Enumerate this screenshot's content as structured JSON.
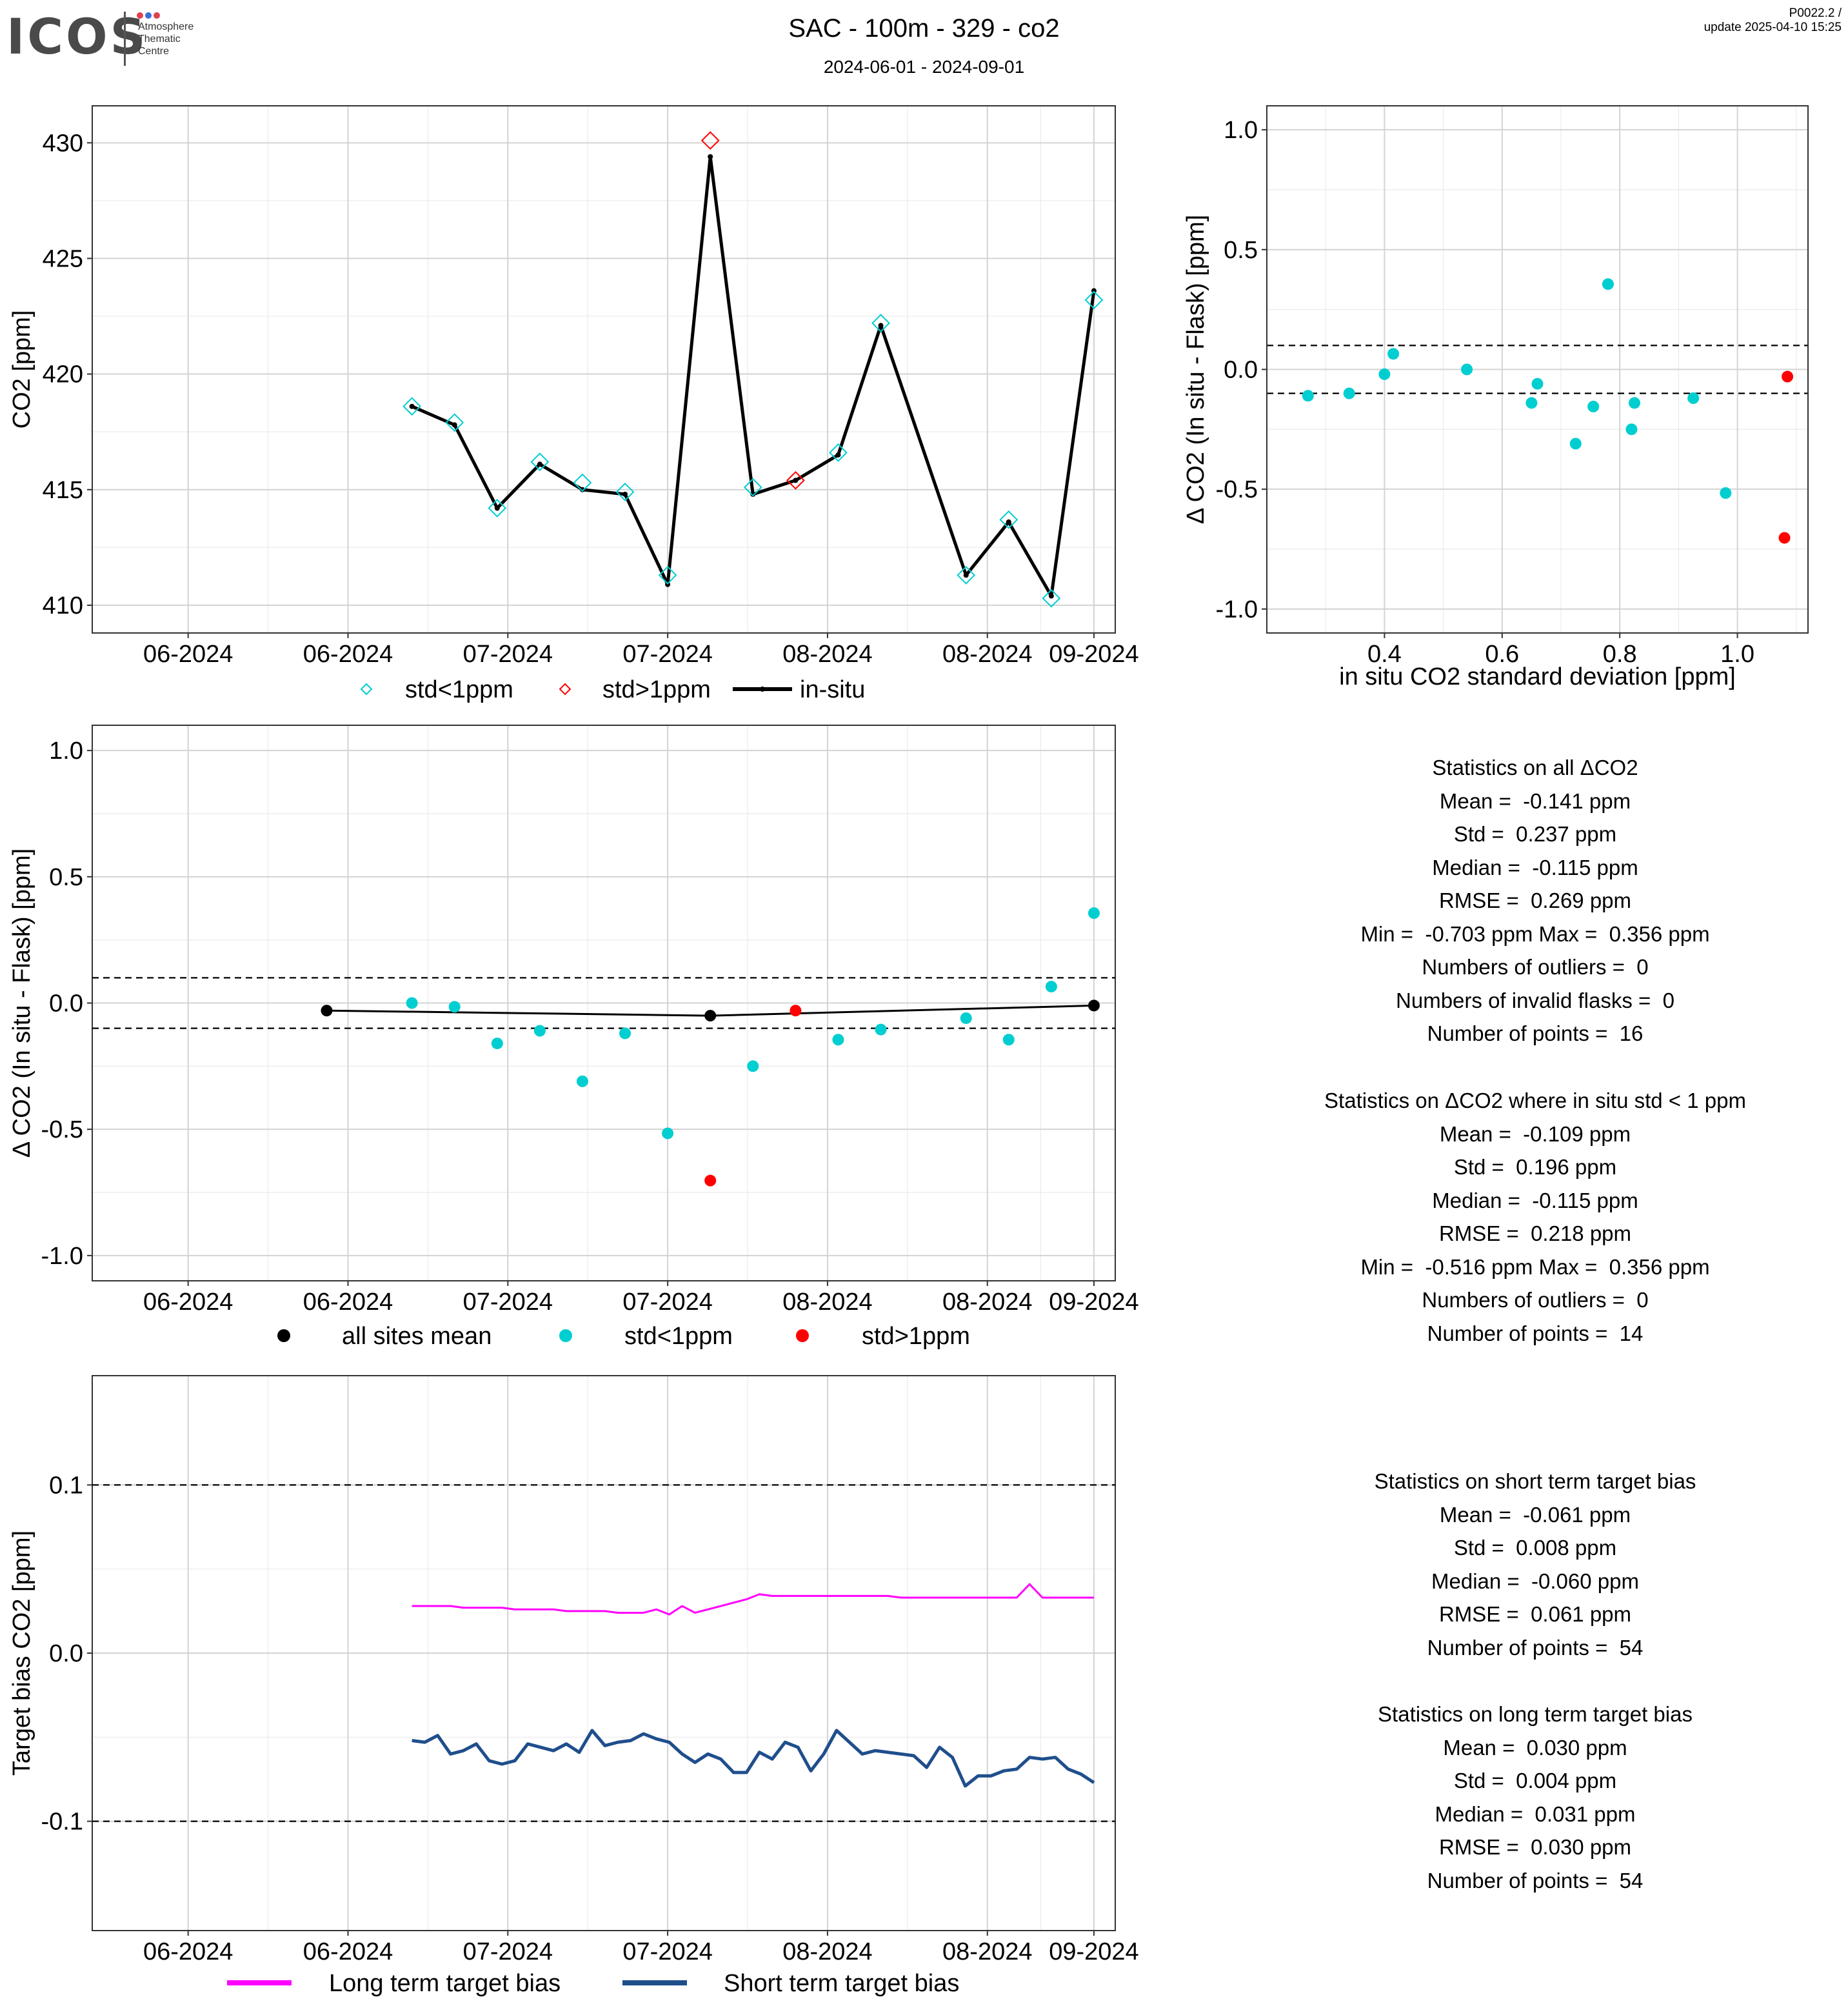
{
  "header": {
    "logo": "ICOS",
    "logo_sub": [
      "Atmosphere",
      "Thematic",
      "Centre"
    ],
    "title": "SAC - 100m - 329 - co2",
    "date_range": "2024-06-01 - 2024-09-01",
    "version": "P0022.2 /",
    "update": "update  2025-04-10 15:25"
  },
  "colors": {
    "cyan": "#00CED1",
    "red": "#FF0000",
    "black": "#000000",
    "magenta": "#FF00FF",
    "navy": "#1F4E8C",
    "grid": "#D3D3D3"
  },
  "chart_data": [
    {
      "id": "co2_timeseries",
      "type": "line",
      "ylabel": "CO2 [ppm]",
      "ylim": [
        408.8,
        431.6
      ],
      "yticks": [
        410,
        415,
        420,
        425,
        430
      ],
      "xtick_labels": [
        "06-2024",
        "06-2024",
        "07-2024",
        "07-2024",
        "08-2024",
        "08-2024",
        "09-2024"
      ],
      "legend": [
        "std<1ppm",
        "std>1ppm",
        "in-situ"
      ],
      "legend_position": "bottom",
      "in_situ": {
        "x": [
          "2024-07-04",
          "2024-07-08",
          "2024-07-12",
          "2024-07-16",
          "2024-07-20",
          "2024-07-24",
          "2024-07-28",
          "2024-08-01",
          "2024-08-05",
          "2024-08-09",
          "2024-08-13",
          "2024-08-17",
          "2024-08-25",
          "2024-08-29",
          "2024-09-02",
          "2024-09-06"
        ],
        "y": [
          418.6,
          417.8,
          414.2,
          416.1,
          415.0,
          414.8,
          410.9,
          429.4,
          414.8,
          415.4,
          416.5,
          422.1,
          411.3,
          413.6,
          410.4,
          423.6
        ]
      },
      "flask_std_lt_1ppm": {
        "x": [
          "2024-07-04",
          "2024-07-08",
          "2024-07-12",
          "2024-07-16",
          "2024-07-20",
          "2024-07-24",
          "2024-07-28",
          "2024-08-05",
          "2024-08-13",
          "2024-08-17",
          "2024-08-25",
          "2024-08-29",
          "2024-09-02",
          "2024-09-06"
        ],
        "y": [
          418.6,
          417.9,
          414.2,
          416.2,
          415.3,
          414.9,
          411.3,
          415.1,
          416.6,
          422.2,
          411.3,
          413.7,
          410.3,
          423.2
        ]
      },
      "flask_std_gt_1ppm": {
        "x": [
          "2024-08-01",
          "2024-08-09"
        ],
        "y": [
          430.1,
          415.4
        ]
      }
    },
    {
      "id": "delta_vs_std",
      "type": "scatter",
      "xlabel": "in situ CO2 standard deviation [ppm]",
      "ylabel": "Δ CO2 (In situ - Flask) [ppm]",
      "xlim": [
        0.2,
        1.12
      ],
      "ylim": [
        -1.1,
        1.1
      ],
      "xticks": [
        0.4,
        0.6,
        0.8,
        1.0
      ],
      "yticks": [
        -1.0,
        -0.5,
        0.0,
        0.5,
        1.0
      ],
      "reference_lines": [
        0.1,
        -0.1
      ],
      "std_lt_1ppm": {
        "x": [
          0.27,
          0.34,
          0.4,
          0.415,
          0.54,
          0.65,
          0.66,
          0.725,
          0.755,
          0.78,
          0.82,
          0.825,
          0.925,
          0.98
        ],
        "y": [
          -0.11,
          -0.1,
          -0.02,
          0.065,
          0.0,
          -0.14,
          -0.06,
          -0.31,
          -0.155,
          0.356,
          -0.25,
          -0.14,
          -0.12,
          -0.516
        ]
      },
      "std_gt_1ppm": {
        "x": [
          1.085,
          1.08
        ],
        "y": [
          -0.03,
          -0.703
        ]
      }
    },
    {
      "id": "delta_timeseries",
      "type": "scatter",
      "ylabel": "Δ CO2 (In situ - Flask) [ppm]",
      "ylim": [
        -1.1,
        1.1
      ],
      "yticks": [
        -1.0,
        -0.5,
        0.0,
        0.5,
        1.0
      ],
      "xtick_labels": [
        "06-2024",
        "06-2024",
        "07-2024",
        "07-2024",
        "08-2024",
        "08-2024",
        "09-2024"
      ],
      "reference_lines": [
        0.1,
        -0.1
      ],
      "legend": [
        "all sites mean",
        "std<1ppm",
        "std>1ppm"
      ],
      "legend_position": "bottom",
      "all_sites_mean": {
        "x": [
          "2024-06-26",
          "2024-08-01",
          "2024-09-06"
        ],
        "y": [
          -0.03,
          -0.05,
          -0.01
        ]
      },
      "std_lt_1ppm": {
        "x": [
          "2024-07-04",
          "2024-07-08",
          "2024-07-12",
          "2024-07-16",
          "2024-07-20",
          "2024-07-24",
          "2024-07-28",
          "2024-08-05",
          "2024-08-13",
          "2024-08-17",
          "2024-08-25",
          "2024-08-29",
          "2024-09-02",
          "2024-09-06"
        ],
        "y": [
          0.0,
          -0.015,
          -0.16,
          -0.11,
          -0.31,
          -0.12,
          -0.516,
          -0.25,
          -0.145,
          -0.105,
          -0.06,
          -0.145,
          0.065,
          0.356
        ]
      },
      "std_gt_1ppm": {
        "x": [
          "2024-08-01",
          "2024-08-09"
        ],
        "y": [
          -0.703,
          -0.03
        ]
      }
    },
    {
      "id": "target_bias",
      "type": "line",
      "ylabel": "Target bias CO2 [ppm]",
      "ylim": [
        -0.165,
        0.165
      ],
      "yticks": [
        -0.1,
        0.0,
        0.1
      ],
      "xtick_labels": [
        "06-2024",
        "06-2024",
        "07-2024",
        "07-2024",
        "08-2024",
        "08-2024",
        "09-2024"
      ],
      "reference_lines": [
        0.1,
        -0.1
      ],
      "legend": [
        "Long term target bias",
        "Short term target bias"
      ],
      "legend_position": "bottom",
      "x_start": "2024-07-04",
      "x_end": "2024-09-06",
      "series": [
        {
          "name": "Long term target bias",
          "color": "#FF00FF",
          "values": [
            0.028,
            0.028,
            0.028,
            0.028,
            0.027,
            0.027,
            0.027,
            0.027,
            0.026,
            0.026,
            0.026,
            0.026,
            0.025,
            0.025,
            0.025,
            0.025,
            0.024,
            0.024,
            0.024,
            0.026,
            0.023,
            0.028,
            0.024,
            0.026,
            0.028,
            0.03,
            0.032,
            0.035,
            0.034,
            0.034,
            0.034,
            0.034,
            0.034,
            0.034,
            0.034,
            0.034,
            0.034,
            0.034,
            0.033,
            0.033,
            0.033,
            0.033,
            0.033,
            0.033,
            0.033,
            0.033,
            0.033,
            0.033,
            0.041,
            0.033,
            0.033,
            0.033,
            0.033,
            0.033
          ]
        },
        {
          "name": "Short term target bias",
          "color": "#1F4E8C",
          "values": [
            -0.052,
            -0.053,
            -0.049,
            -0.06,
            -0.058,
            -0.054,
            -0.064,
            -0.066,
            -0.064,
            -0.054,
            -0.056,
            -0.058,
            -0.054,
            -0.059,
            -0.046,
            -0.055,
            -0.053,
            -0.052,
            -0.048,
            -0.051,
            -0.053,
            -0.06,
            -0.065,
            -0.06,
            -0.063,
            -0.071,
            -0.071,
            -0.059,
            -0.063,
            -0.053,
            -0.056,
            -0.07,
            -0.06,
            -0.046,
            -0.053,
            -0.06,
            -0.058,
            -0.059,
            -0.06,
            -0.061,
            -0.068,
            -0.056,
            -0.062,
            -0.079,
            -0.073,
            -0.073,
            -0.07,
            -0.069,
            -0.062,
            -0.063,
            -0.062,
            -0.069,
            -0.072,
            -0.077
          ]
        }
      ]
    }
  ],
  "stats_all": [
    "Statistics on all ΔCO2",
    "Mean =  -0.141 ppm",
    "Std =  0.237 ppm",
    "Median =  -0.115 ppm",
    "RMSE =  0.269 ppm",
    "Min =  -0.703 ppm Max =  0.356 ppm",
    "Numbers of outliers =  0",
    "Numbers of invalid flasks =  0",
    "Number of points =  16"
  ],
  "stats_lt1": [
    "Statistics on ΔCO2 where in situ std < 1 ppm",
    "Mean =  -0.109 ppm",
    "Std =  0.196 ppm",
    "Median =  -0.115 ppm",
    "RMSE =  0.218 ppm",
    "Min =  -0.516 ppm Max =  0.356 ppm",
    "Numbers of outliers =  0",
    "Number of points =  14"
  ],
  "stats_short": [
    "Statistics on short term target bias",
    "Mean =  -0.061 ppm",
    "Std =  0.008 ppm",
    "Median =  -0.060 ppm",
    "RMSE =  0.061 ppm",
    "Number of points =  54"
  ],
  "stats_long": [
    "Statistics on long term target bias",
    "Mean =  0.030 ppm",
    "Std =  0.004 ppm",
    "Median =  0.031 ppm",
    "RMSE =  0.030 ppm",
    "Number of points =  54"
  ]
}
